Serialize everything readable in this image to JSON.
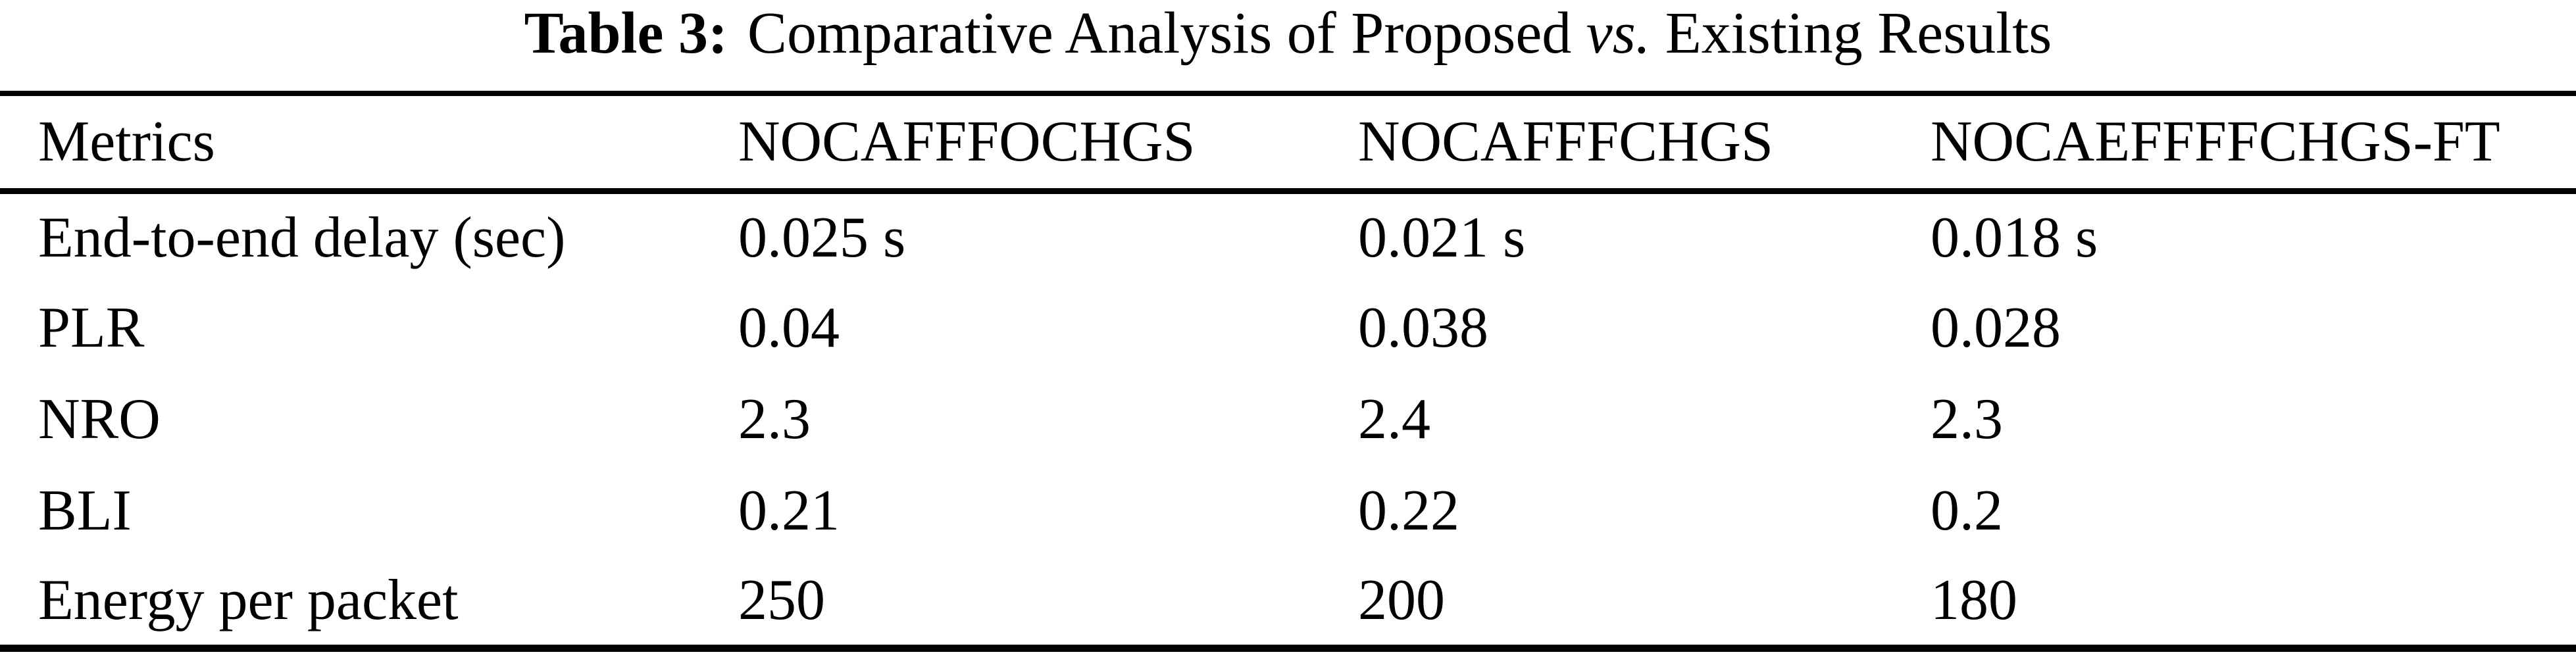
{
  "title": {
    "label": "Table 3:",
    "before_vs": "Comparative Analysis of Proposed",
    "vs": "vs.",
    "after_vs": "Existing Results"
  },
  "table": {
    "columns": [
      "Metrics",
      "NOCAFFFOCHGS",
      "NOCAFFFCHGS",
      "NOCAEFFFFCHGS-FT"
    ],
    "rows": [
      {
        "metric": "End-to-end delay (sec)",
        "values": [
          "0.025 s",
          "0.021 s",
          "0.018 s"
        ]
      },
      {
        "metric": "PLR",
        "values": [
          "0.04",
          "0.038",
          "0.028"
        ]
      },
      {
        "metric": "NRO",
        "values": [
          "2.3",
          "2.4",
          "2.3"
        ]
      },
      {
        "metric": "BLI",
        "values": [
          "0.21",
          "0.22",
          "0.2"
        ]
      },
      {
        "metric": "Energy per packet",
        "values": [
          "250",
          "200",
          "180"
        ]
      }
    ]
  },
  "colors": {
    "text": "#000000",
    "background": "#ffffff",
    "rule": "#000000"
  }
}
